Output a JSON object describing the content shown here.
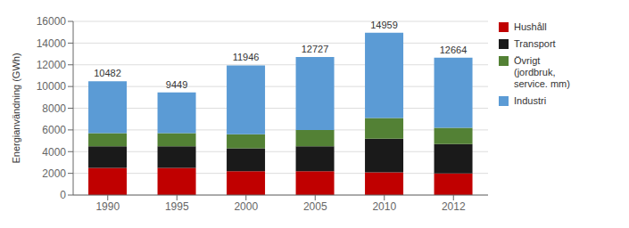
{
  "chart_data": {
    "type": "bar",
    "stacked": true,
    "categories": [
      "1990",
      "1995",
      "2000",
      "2005",
      "2010",
      "2012"
    ],
    "series": [
      {
        "name": "Hushåll",
        "color": "#c00000",
        "values": [
          2500,
          2500,
          2200,
          2200,
          2100,
          2000
        ]
      },
      {
        "name": "Transport",
        "color": "#1a1a1a",
        "values": [
          2000,
          2000,
          2100,
          2300,
          3100,
          2700
        ]
      },
      {
        "name": "Övrigt\n(jordbruk,\nservice. mm)",
        "color": "#538135",
        "values": [
          1200,
          1200,
          1300,
          1500,
          1900,
          1500
        ]
      },
      {
        "name": "Industri",
        "color": "#5b9bd5",
        "values": [
          4782,
          3749,
          6346,
          6727,
          7859,
          6464
        ]
      }
    ],
    "totals": [
      10482,
      9449,
      11946,
      12727,
      14959,
      12664
    ],
    "ylabel": "Energianvändning (GWh)",
    "ylim": [
      0,
      16000
    ],
    "yticks": [
      0,
      2000,
      4000,
      6000,
      8000,
      10000,
      12000,
      14000,
      16000
    ],
    "grid": true,
    "legend": "right"
  }
}
